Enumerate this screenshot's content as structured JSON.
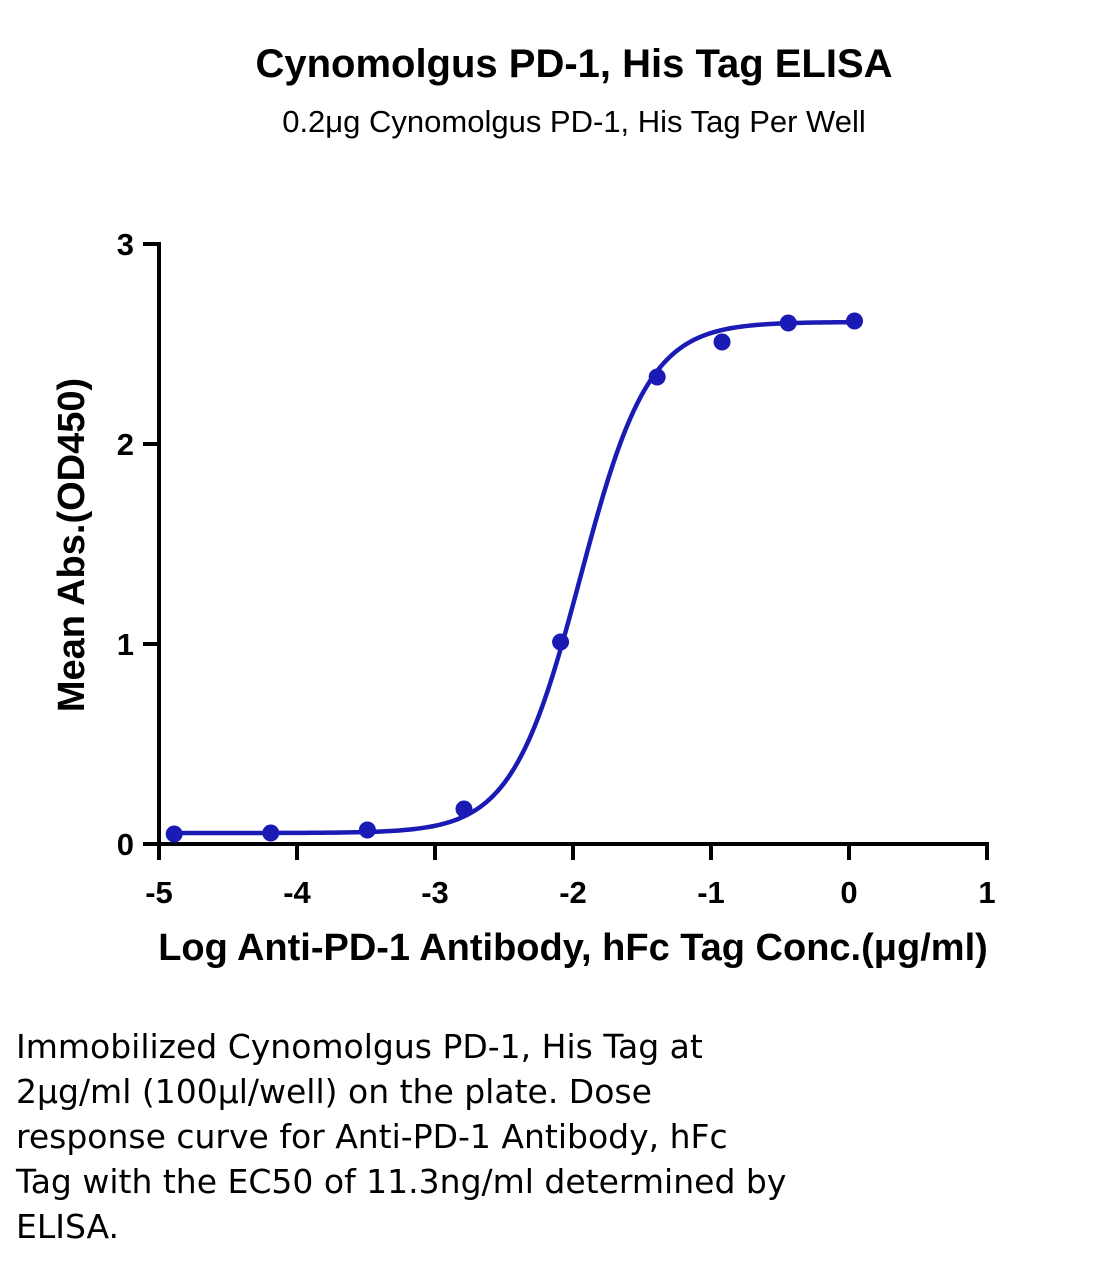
{
  "chart_data": {
    "type": "scatter",
    "title": "Cynomolgus PD-1, His Tag ELISA",
    "subtitle": "0.2μg Cynomolgus PD-1, His Tag Per Well",
    "xlabel": "Log Anti-PD-1 Antibody, hFc Tag Conc.(μg/ml)",
    "ylabel": "Mean Abs.(OD450)",
    "xlim": [
      -5,
      1
    ],
    "ylim": [
      0,
      3
    ],
    "xticks": [
      "-5",
      "-4",
      "-3",
      "-2",
      "-1",
      "0",
      "1"
    ],
    "yticks": [
      "0",
      "1",
      "2",
      "3"
    ],
    "grid": false,
    "color": "#1a1ab4",
    "series": [
      {
        "points": [
          {
            "x": -4.89,
            "y": 0.05
          },
          {
            "x": -4.19,
            "y": 0.055
          },
          {
            "x": -3.49,
            "y": 0.07
          },
          {
            "x": -2.79,
            "y": 0.175
          },
          {
            "x": -2.09,
            "y": 1.01
          },
          {
            "x": -1.39,
            "y": 2.335
          },
          {
            "x": -0.92,
            "y": 2.51
          },
          {
            "x": -0.44,
            "y": 2.605
          },
          {
            "x": 0.04,
            "y": 2.615
          }
        ],
        "fit": {
          "model": "4PL",
          "bottom": 0.055,
          "top": 2.61,
          "log_ec50": -1.947,
          "hill": 1.75
        }
      }
    ]
  },
  "caption": {
    "lines": [
      "Immobilized Cynomolgus PD-1, His Tag at",
      "2μg/ml (100μl/well) on the plate. Dose",
      "response curve for Anti-PD-1 Antibody, hFc",
      "Tag with the EC50 of 11.3ng/ml determined by",
      "ELISA."
    ]
  }
}
